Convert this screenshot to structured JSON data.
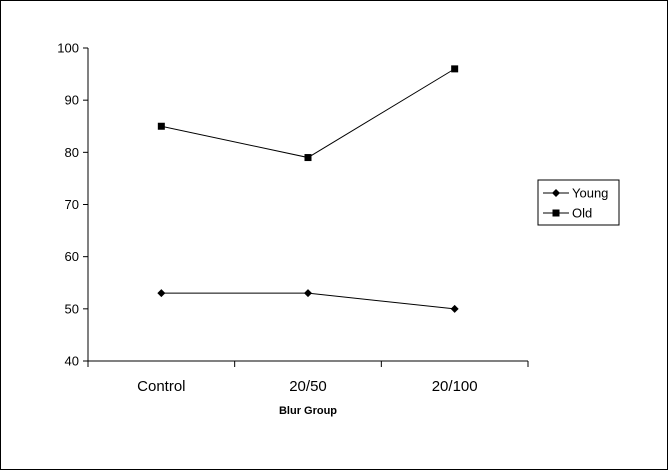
{
  "chart_data": {
    "type": "line",
    "categories": [
      "Control",
      "20/50",
      "20/100"
    ],
    "series": [
      {
        "name": "Young",
        "values": [
          53,
          53,
          50
        ],
        "marker": "diamond"
      },
      {
        "name": "Old",
        "values": [
          85,
          79,
          96
        ],
        "marker": "square"
      }
    ],
    "xlabel": "Blur Group",
    "ylabel": "",
    "ylim": [
      40,
      100
    ],
    "yticks": [
      40,
      50,
      60,
      70,
      80,
      90,
      100
    ],
    "grid": false,
    "legend": "right",
    "colors": {
      "line": "#000000",
      "marker": "#000000",
      "background": "#ffffff"
    }
  }
}
